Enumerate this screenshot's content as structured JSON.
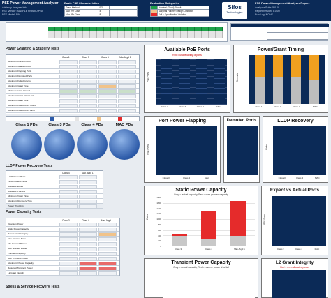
{
  "header": {
    "title": "PSE Power Management Analyzer",
    "line2": "Advisory Analyzer Info",
    "line3": "PSE Vendor: SAMPLE HYBRID PSE",
    "line4": "PSE Model: NA",
    "center_title": "Basic PSE Characteristics",
    "center_rows": [
      "Grant Method",
      "Max 2Pr Class",
      "Max 4Pr Class"
    ],
    "center_vals": [
      "PO",
      "4",
      "8"
    ],
    "eval_title": "Evaluation Categories",
    "eval_rows": [
      "Nominal (Good) Result",
      "Marginal Failure / Design Limitation",
      "Fail = Specification Violation"
    ],
    "brand": "Sifos",
    "brand_sub": "Technologies",
    "report_title": "PSE Power Management Analyzer Report",
    "report_lines": [
      "Analyzer Suite: 5.0.00",
      "Report Version: 5.0.00",
      "Run Log: NONE"
    ]
  },
  "sections": {
    "grant": "Power Granting & Stability Tests",
    "lldp": "LLDP Power Recovery Tests",
    "capacity": "Power Capacity Tests",
    "stress": "Stress & Service Recovery Tests"
  },
  "grant_table": {
    "cols": [
      "Class 1",
      "Class 3",
      "Class 4",
      "Max Avgd 1"
    ],
    "rows": [
      "Minimum Granted Ports",
      "Maximum Granted Ports",
      "Maximum Flapping Ports",
      "Maximum Demoted Ports",
      "Maximum Failed Grants",
      "Maximum Grant Time",
      "Minimum Grant Interval",
      "Maximum Grant Class Limit",
      "Maximum Grant Limit",
      "Maximum Failed Grant Class",
      "Maximum Failed Grant Limit"
    ]
  },
  "pies": {
    "labels": [
      "Class 1 PDs",
      "Class 3 PDs",
      "Class 4 PDs",
      "MAC PDs"
    ]
  },
  "lldp_table": {
    "cols": [
      "Class 4",
      "Max Avgd 1"
    ],
    "rows": [
      "LLDP Power Ports",
      "LLDP Power Levels",
      "At Rest Failures",
      "At Rest PD Levels",
      "Minimum Power Time",
      "Maximum Recovery Time",
      "Power Throttling"
    ]
  },
  "capacity_table": {
    "cols": [
      "Class 3",
      "Class 4",
      "Max Avgd 1"
    ],
    "rows": [
      "Quantum Power",
      "Static Power Capacity",
      "Power Grant Integrity",
      "Max Granted Ports",
      "Min Granted Power",
      "Max Granted Power",
      "Transient Capacity",
      "Max Transient Power",
      "Maximum Overall Capacity",
      "Required Transient Power",
      "L2 Grant Integrity"
    ]
  },
  "charts": {
    "available": {
      "title": "Available PoE Ports",
      "note": "Red = unavailability of ports",
      "ylabel": "PSE Ports"
    },
    "timing": {
      "title": "Power/Grant Timing",
      "ylabel": "Seconds"
    },
    "flapping": {
      "title": "Port Power Flapping",
      "ylabel": "PSE Ports"
    },
    "demoted": {
      "title": "Demoted Ports"
    },
    "lldp": {
      "title": "LLDP Recovery",
      "ylabel": "Watts"
    },
    "static": {
      "title": "Static Power Capacity",
      "note": "Grey = actual capacity, Red = over-granted capacity",
      "ylabel": "Watts"
    },
    "expect": {
      "title": "Expect vs Actual Ports",
      "ylabel": "PSE Ports"
    },
    "transient": {
      "title": "Transient Power Capacity",
      "note": "Grey = actual capacity, Red = reserve power shortfall"
    },
    "l2": {
      "title": "L2 Grant Integrity",
      "note": "Red = over-allocated power"
    },
    "class_labels_4": [
      "Class 1",
      "Class 3",
      "Class 4",
      "MAC"
    ],
    "class_labels_3": [
      "Class 3",
      "Class 4",
      "MAC"
    ],
    "class_labels_static": [
      "Class 3",
      "Class 4",
      "Max Avgd 1"
    ],
    "timing_ticks": [
      "40",
      "30",
      "20",
      "10",
      "0"
    ],
    "static_ticks": [
      "1800",
      "1600",
      "1400",
      "1200",
      "1000",
      "800",
      "600",
      "400",
      "200",
      "0"
    ]
  },
  "chart_data": [
    {
      "type": "bar",
      "title": "Static Power Capacity",
      "categories": [
        "Class 3",
        "Class 4",
        "Max Avgd 1"
      ],
      "series": [
        {
          "values": [
            350,
            250,
            350
          ]
        },
        {
          "values": [
            70,
            1000,
            1300
          ]
        }
      ],
      "ylim": [
        0,
        1800
      ]
    },
    {
      "type": "bar",
      "title": "Power/Grant Timing",
      "categories": [
        "Class 1",
        "Class 3",
        "Class 4",
        "MAC"
      ],
      "series": [
        {
          "values": [
            22,
            22,
            22,
            20
          ]
        },
        {
          "values": [
            18,
            18,
            18,
            20
          ]
        }
      ],
      "ylim": [
        0,
        40
      ]
    }
  ]
}
